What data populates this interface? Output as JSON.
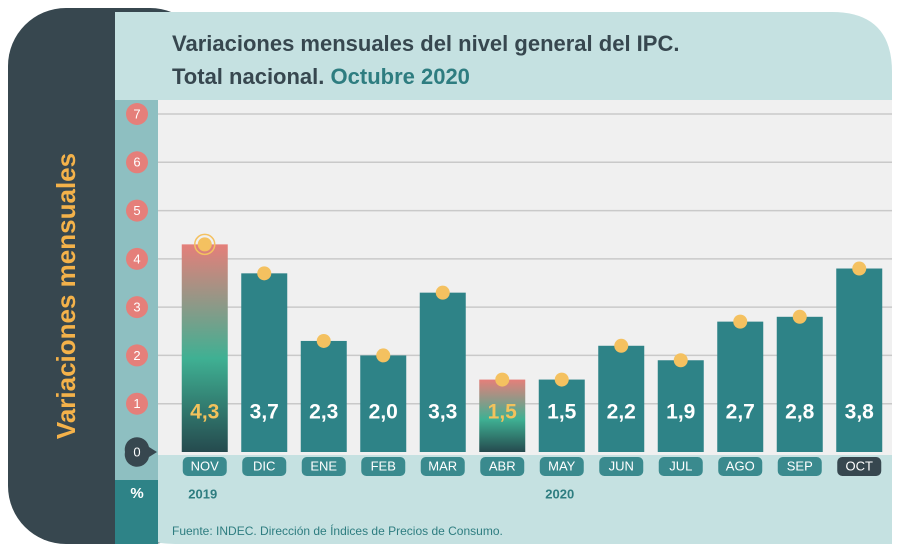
{
  "chart_data": {
    "type": "bar",
    "title": "Variaciones mensuales del nivel general del IPC.",
    "subtitle": "Total nacional.",
    "subtitle_highlight": "Octubre 2020",
    "y_label": "Variaciones mensuales",
    "y_unit": "%",
    "source": "Fuente: INDEC. Dirección de Índices de Precios de Consumo.",
    "years": [
      {
        "label": "2019",
        "at": 0
      },
      {
        "label": "2020",
        "at": 6
      }
    ],
    "categories": [
      "NOV",
      "DIC",
      "ENE",
      "FEB",
      "MAR",
      "ABR",
      "MAY",
      "JUN",
      "JUL",
      "AGO",
      "SEP",
      "OCT"
    ],
    "values": [
      4.3,
      3.7,
      2.3,
      2.0,
      3.3,
      1.5,
      1.5,
      2.2,
      1.9,
      2.7,
      2.8,
      3.8
    ],
    "value_labels": [
      "4,3",
      "3,7",
      "2,3",
      "2,0",
      "3,3",
      "1,5",
      "1,5",
      "2,2",
      "1,9",
      "2,7",
      "2,8",
      "3,8"
    ],
    "color": "#2e8387",
    "highlight": [
      0,
      5
    ],
    "highlight_color": "#e57f7a",
    "highlight_label_color": "#f2c25c",
    "dot_color": "#f4c160",
    "ylim": [
      0,
      7
    ],
    "yticks": [
      0,
      1,
      2,
      3,
      4,
      5,
      6,
      7
    ],
    "grid": true
  }
}
